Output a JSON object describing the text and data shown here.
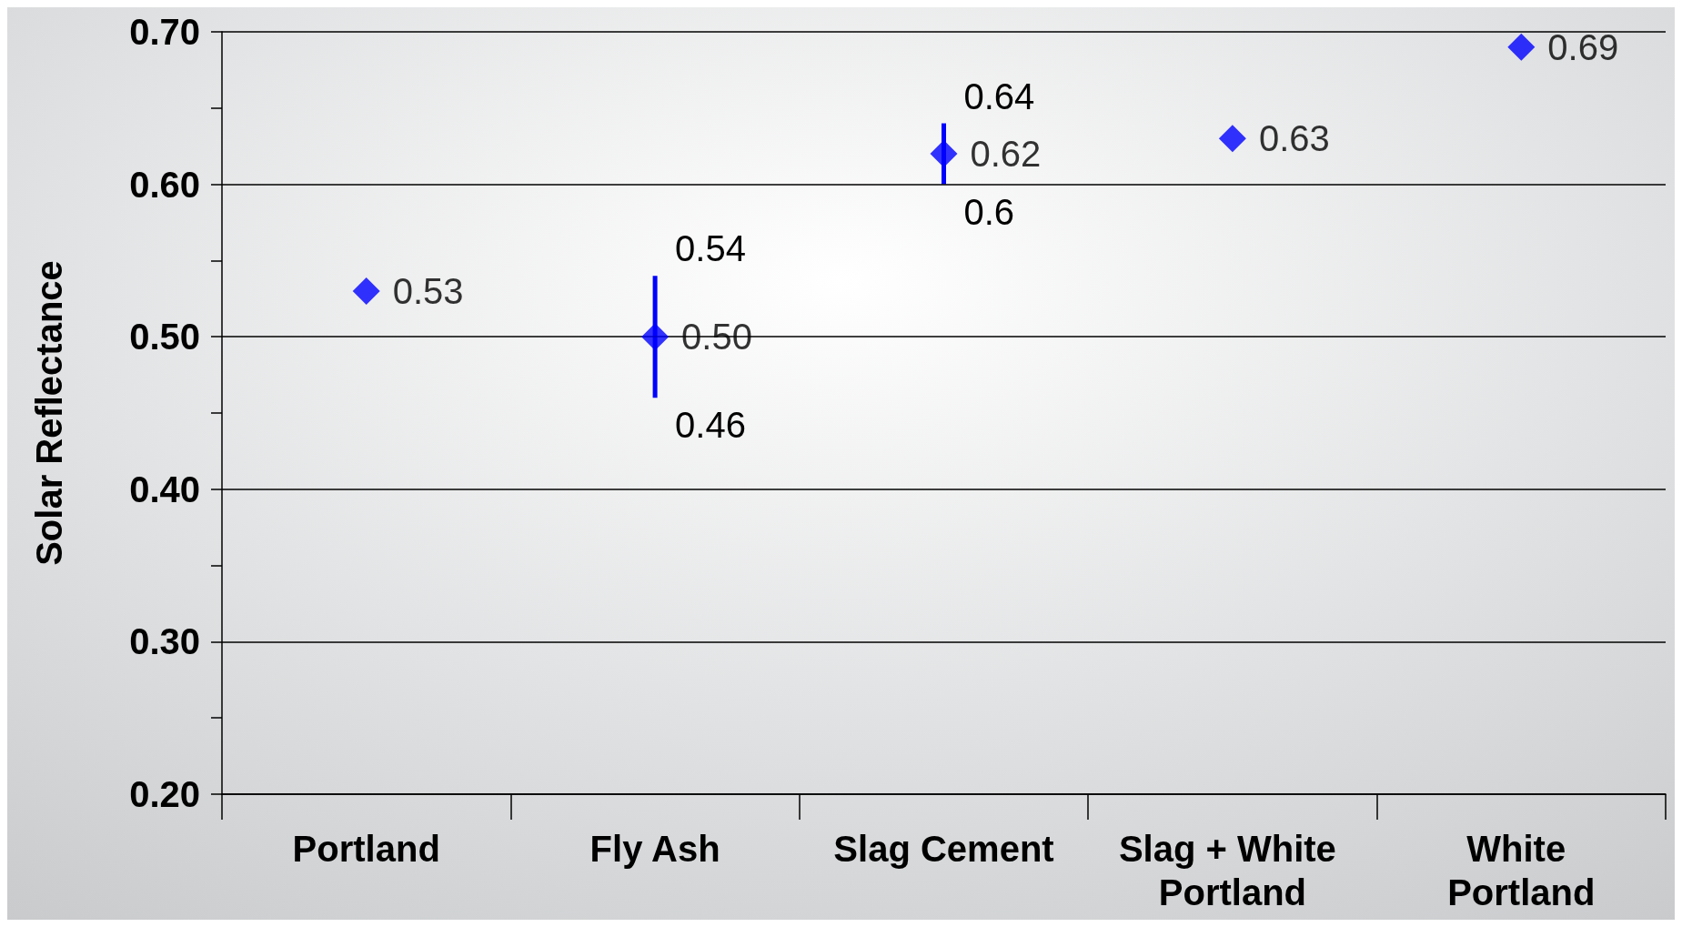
{
  "chart_data": {
    "type": "scatter",
    "ylabel": "Solar Reflectance",
    "categories": [
      "Portland",
      "Fly Ash",
      "Slag Cement",
      "Slag + White Portland",
      "White Portland"
    ],
    "series": [
      {
        "color": "#0000ff",
        "values": [
          0.53,
          0.5,
          0.62,
          0.63,
          0.69
        ],
        "errors": [
          null,
          [
            0.46,
            0.54
          ],
          [
            0.6,
            0.64
          ],
          null,
          null
        ],
        "value_labels": [
          "0.53",
          "0.50",
          "0.62",
          "0.63",
          "0.69"
        ]
      }
    ],
    "annotations": [
      {
        "text": "0.54",
        "x": "Fly Ash",
        "y": 0.54
      },
      {
        "text": "0.46",
        "x": "Fly Ash",
        "y": 0.46
      },
      {
        "text": "0.64",
        "x": "Slag Cement",
        "y": 0.64
      },
      {
        "text": "0.6",
        "x": "Slag Cement",
        "y": 0.6
      }
    ],
    "ylim": [
      0.2,
      0.7
    ],
    "yticks": [
      {
        "value": 0.2,
        "label": "0.20"
      },
      {
        "value": 0.25,
        "label": null
      },
      {
        "value": 0.3,
        "label": "0.30"
      },
      {
        "value": 0.35,
        "label": null
      },
      {
        "value": 0.4,
        "label": "0.40"
      },
      {
        "value": 0.45,
        "label": null
      },
      {
        "value": 0.5,
        "label": "0.50"
      },
      {
        "value": 0.55,
        "label": null
      },
      {
        "value": 0.6,
        "label": "0.60"
      },
      {
        "value": 0.65,
        "label": null
      },
      {
        "value": 0.7,
        "label": "0.70"
      }
    ],
    "grid": "y",
    "marker": "diamond"
  }
}
